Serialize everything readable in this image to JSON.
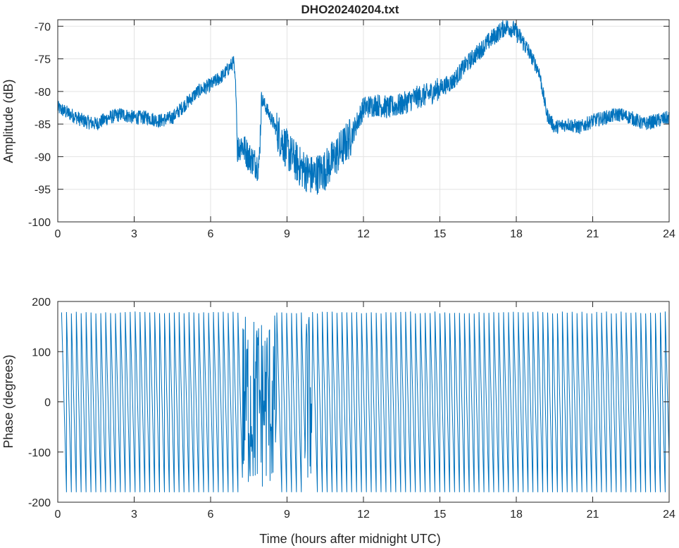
{
  "chart_data": [
    {
      "type": "line",
      "title": "DHO20240204.txt",
      "xlabel": "",
      "ylabel": "Amplitude (dB)",
      "xlim": [
        0,
        24
      ],
      "ylim": [
        -100,
        -69
      ],
      "xticks": [
        "0",
        "3",
        "6",
        "9",
        "12",
        "15",
        "18",
        "21",
        "24"
      ],
      "yticks": [
        "-70",
        "-75",
        "-80",
        "-85",
        "-90",
        "-95",
        "-100"
      ],
      "grid": true,
      "series_color": "#0072BD",
      "series": [
        {
          "x": [
            0,
            0.5,
            1,
            1.5,
            2,
            2.5,
            3,
            3.5,
            4,
            4.5,
            5,
            5.5,
            6,
            6.5,
            6.9,
            7.0,
            7.05,
            7.2,
            7.5,
            7.9,
            8.0,
            8.3,
            8.6,
            9.0,
            9.5,
            10.0,
            10.5,
            11.0,
            11.5,
            12.0,
            12.5,
            13.0,
            13.5,
            14.0,
            14.5,
            15.0,
            15.5,
            16.0,
            16.5,
            17.0,
            17.3,
            17.6,
            17.9,
            18.2,
            18.5,
            18.9,
            19.2,
            19.5,
            20.0,
            20.5,
            21.0,
            21.5,
            22.0,
            22.5,
            23.0,
            23.5,
            24.0
          ],
          "y": [
            -82.5,
            -83.5,
            -84.5,
            -85,
            -84,
            -83.5,
            -84,
            -84,
            -84.5,
            -84,
            -82,
            -80,
            -79,
            -77.5,
            -75.5,
            -80,
            -89,
            -88,
            -90,
            -91.5,
            -81,
            -83.5,
            -86,
            -89,
            -91.5,
            -93,
            -92,
            -89.5,
            -87,
            -82.5,
            -82,
            -82.5,
            -82,
            -81,
            -80.5,
            -79.5,
            -78.5,
            -76,
            -74,
            -72,
            -71,
            -70,
            -70.5,
            -72,
            -74,
            -77,
            -83.5,
            -85.5,
            -85,
            -85.5,
            -84.5,
            -84,
            -83.5,
            -84,
            -85,
            -84.5,
            -84
          ]
        }
      ]
    },
    {
      "type": "line",
      "title": "",
      "xlabel": "Time (hours after midnight UTC)",
      "ylabel": "Phase (degrees)",
      "xlim": [
        0,
        24
      ],
      "ylim": [
        -200,
        200
      ],
      "xticks": [
        "0",
        "3",
        "6",
        "9",
        "12",
        "15",
        "18",
        "21",
        "24"
      ],
      "yticks": [
        "200",
        "100",
        "0",
        "-100",
        "-200"
      ],
      "grid": false,
      "series_color": "#0072BD",
      "series": [
        {
          "description_of_values": "",
          "wrap_range": [
            -180,
            180
          ],
          "wraps_per_hour": 5.2,
          "segments": [
            {
              "x_start": 0.15,
              "x_end": 7.25,
              "mode": "wrap"
            },
            {
              "x_start": 7.25,
              "x_end": 8.6,
              "mode": "noise"
            },
            {
              "x_start": 8.6,
              "x_end": 9.7,
              "mode": "wrap"
            },
            {
              "x_start": 9.7,
              "x_end": 10.0,
              "mode": "noise"
            },
            {
              "x_start": 10.0,
              "x_end": 24.0,
              "mode": "wrap"
            }
          ]
        }
      ]
    }
  ]
}
